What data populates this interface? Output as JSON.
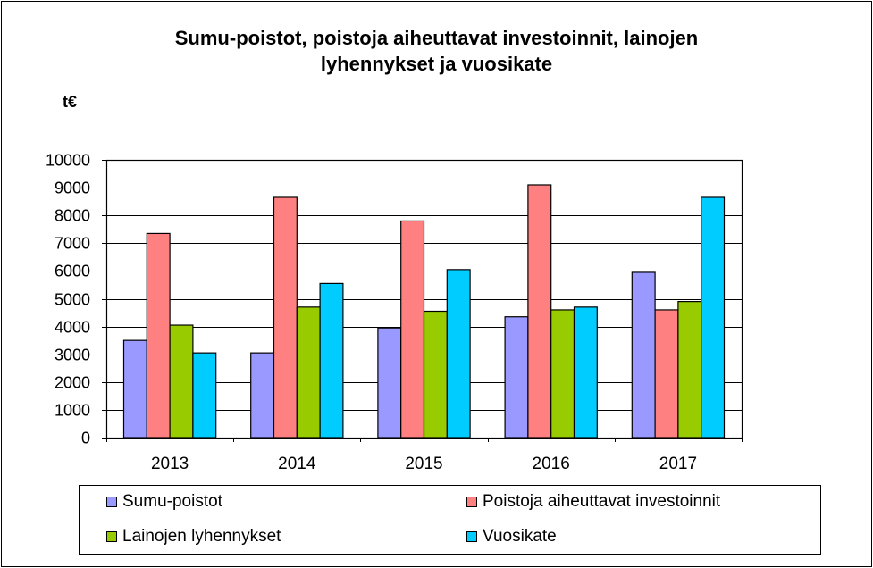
{
  "chart_data": {
    "type": "bar",
    "title_lines": [
      "Sumu-poistot, poistoja aiheuttavat investoinnit, lainojen",
      "lyhennykset ja vuosikate"
    ],
    "unit_label": "t€",
    "categories": [
      "2013",
      "2014",
      "2015",
      "2016",
      "2017"
    ],
    "series": [
      {
        "name": "Sumu-poistot",
        "color": "#9999ff",
        "values": [
          3500,
          3050,
          3950,
          4350,
          5950
        ]
      },
      {
        "name": "Poistoja aiheuttavat investoinnit",
        "color": "#ff8080",
        "values": [
          7350,
          8650,
          7800,
          9100,
          4600
        ]
      },
      {
        "name": "Lainojen lyhennykset",
        "color": "#99cc00",
        "values": [
          4050,
          4700,
          4550,
          4600,
          4900
        ]
      },
      {
        "name": "Vuosikate",
        "color": "#00ccff",
        "values": [
          3050,
          5550,
          6050,
          4700,
          8650
        ]
      }
    ],
    "yticks": [
      "0",
      "1000",
      "2000",
      "3000",
      "4000",
      "5000",
      "6000",
      "7000",
      "8000",
      "9000",
      "10000"
    ],
    "ylim": [
      0,
      10000
    ],
    "grid": true,
    "legend_position": "bottom"
  }
}
